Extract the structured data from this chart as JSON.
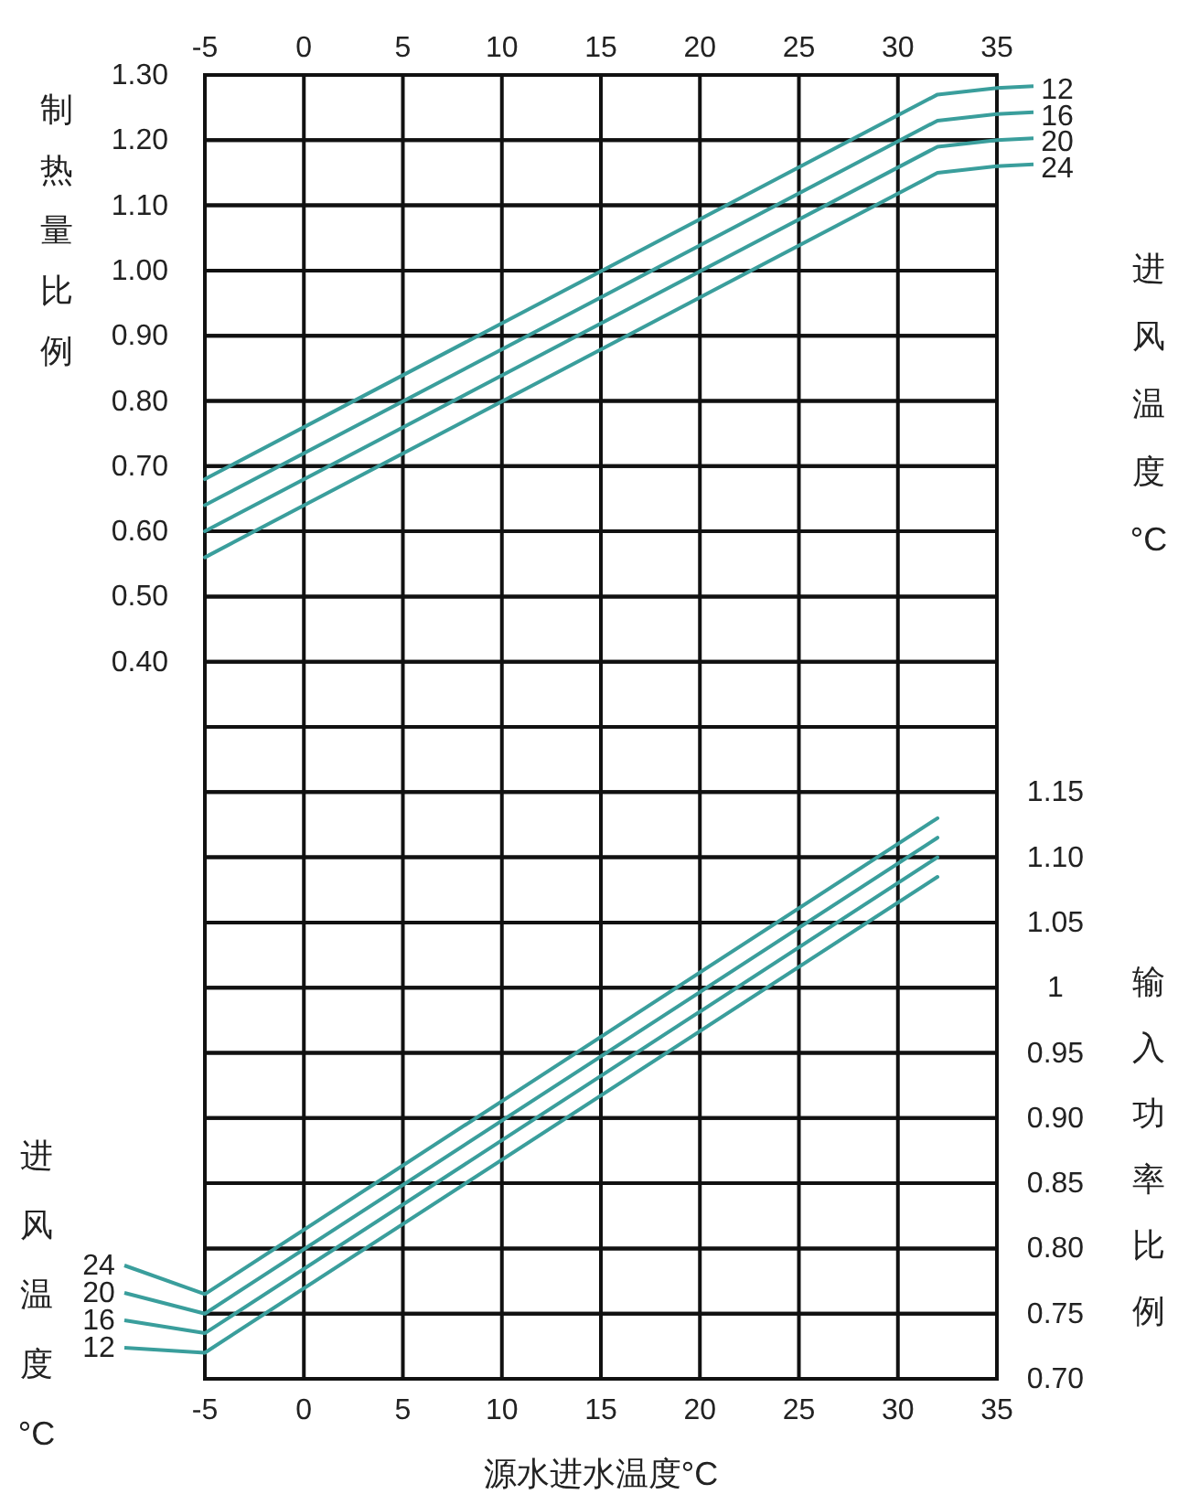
{
  "chart_data": {
    "type": "line",
    "xlabel": "源水进水温度°C",
    "ylabel": "制热量比例",
    "y2label": "输入功率比例",
    "legend_title": "进风温度°C",
    "annotations": [
      "进风温度°C"
    ],
    "xlim": [
      -5,
      35
    ],
    "xticks": [
      -5,
      0,
      5,
      10,
      15,
      20,
      25,
      30,
      35
    ],
    "x2lim": [
      -5,
      35
    ],
    "x2ticks": [
      -5,
      0,
      5,
      10,
      15,
      20,
      25,
      30,
      35
    ],
    "ylim": [
      -0.7,
      1.3
    ],
    "yticks": [
      {
        "value": -0.6,
        "label": null
      },
      {
        "value": -0.5,
        "label": null
      },
      {
        "value": -0.4,
        "label": null
      },
      {
        "value": -0.3,
        "label": null
      },
      {
        "value": -0.2,
        "label": null
      },
      {
        "value": -0.1,
        "label": null
      },
      {
        "value": 0,
        "label": null
      },
      {
        "value": 0.1,
        "label": null
      },
      {
        "value": 0.2,
        "label": null
      },
      {
        "value": 0.3,
        "label": null
      },
      {
        "value": 0.4,
        "label": "0.40"
      },
      {
        "value": 0.5,
        "label": "0.50"
      },
      {
        "value": 0.6,
        "label": "0.60"
      },
      {
        "value": 0.7,
        "label": "0.70"
      },
      {
        "value": 0.8,
        "label": "0.80"
      },
      {
        "value": 0.9,
        "label": "0.90"
      },
      {
        "value": 1.0,
        "label": "1.00"
      },
      {
        "value": 1.1,
        "label": "1.10"
      },
      {
        "value": 1.2,
        "label": "1.20"
      },
      {
        "value": 1.3,
        "label": "1.30"
      }
    ],
    "y2lim": [
      0.7,
      1.7
    ],
    "y2ticks": [
      {
        "value": 0.7,
        "label": "0.70"
      },
      {
        "value": 0.75,
        "label": "0.75"
      },
      {
        "value": 0.8,
        "label": "0.80"
      },
      {
        "value": 0.85,
        "label": "0.85"
      },
      {
        "value": 0.9,
        "label": "0.90"
      },
      {
        "value": 0.95,
        "label": "0.95"
      },
      1,
      {
        "value": 1.05,
        "label": "1.05"
      },
      {
        "value": 1.1,
        "label": "1.10"
      },
      {
        "value": 1.15,
        "label": "1.15"
      },
      {
        "value": 1.2,
        "label": null
      },
      {
        "value": 1.25,
        "label": null
      },
      {
        "value": 1.3,
        "label": null
      },
      {
        "value": 1.35,
        "label": null
      },
      {
        "value": 1.4,
        "label": null
      },
      {
        "value": 1.45,
        "label": null
      },
      {
        "value": 1.5,
        "label": null
      },
      {
        "value": 1.55,
        "label": null
      },
      {
        "value": 1.6,
        "label": null
      },
      {
        "value": 1.65,
        "label": null
      }
    ],
    "grid": true,
    "legend": "top right",
    "line_style": "solid",
    "marker": "none",
    "series": [
      {
        "name": "12",
        "color": "#3a9e9c",
        "x": [
          -5,
          32,
          35
        ],
        "values": [
          0.68,
          1.27,
          1.28
        ]
      },
      {
        "name": "16",
        "color": "#3a9e9c",
        "x": [
          -5,
          32,
          35
        ],
        "values": [
          0.64,
          1.23,
          1.24
        ]
      },
      {
        "name": "20",
        "color": "#3a9e9c",
        "x": [
          -5,
          32,
          35
        ],
        "values": [
          0.6,
          1.19,
          1.2
        ]
      },
      {
        "name": "24",
        "color": "#3a9e9c",
        "x": [
          -5,
          32,
          35
        ],
        "values": [
          0.56,
          1.15,
          1.16
        ]
      },
      {
        "name": "24",
        "color": "#3a9e9c",
        "axis": "y2",
        "x": [
          -5,
          32
        ],
        "values": [
          0.765,
          1.13
        ]
      },
      {
        "name": "20",
        "color": "#3a9e9c",
        "axis": "y2",
        "x": [
          -5,
          32
        ],
        "values": [
          0.75,
          1.115
        ]
      },
      {
        "name": "16",
        "color": "#3a9e9c",
        "axis": "y2",
        "x": [
          -5,
          32
        ],
        "values": [
          0.735,
          1.1
        ]
      },
      {
        "name": "12",
        "color": "#3a9e9c",
        "axis": "y2",
        "x": [
          -5,
          32
        ],
        "values": [
          0.72,
          1.085
        ]
      }
    ]
  }
}
